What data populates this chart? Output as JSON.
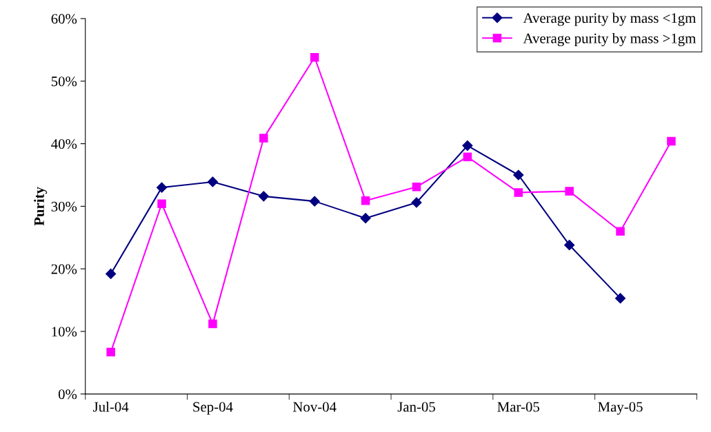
{
  "chart_data": {
    "type": "line",
    "ylabel": "Purity",
    "categories": [
      "Jul-04",
      null,
      "Sep-04",
      null,
      "Nov-04",
      null,
      "Jan-05",
      null,
      "Mar-05",
      null,
      "May-05",
      null
    ],
    "series": [
      {
        "name": "Average purity by mass <1gm",
        "color": "#000080",
        "marker": "diamond",
        "values": [
          19.2,
          33.0,
          33.9,
          31.6,
          30.8,
          28.1,
          30.6,
          39.7,
          35.0,
          23.8,
          15.3,
          null
        ]
      },
      {
        "name": "Average purity by mass >1gm",
        "color": "#ff00ff",
        "marker": "square",
        "values": [
          6.7,
          30.4,
          11.2,
          40.9,
          53.8,
          30.9,
          33.1,
          37.9,
          32.2,
          32.4,
          26.0,
          40.4
        ]
      }
    ],
    "ylim": [
      0,
      60
    ],
    "yticks": [
      {
        "value": 0,
        "label": "0%"
      },
      {
        "value": 10,
        "label": "10%"
      },
      {
        "value": 20,
        "label": "20%"
      },
      {
        "value": 30,
        "label": "30%"
      },
      {
        "value": 40,
        "label": "40%"
      },
      {
        "value": 50,
        "label": "50%"
      },
      {
        "value": 60,
        "label": "60%"
      }
    ],
    "grid": false,
    "legend": "top right"
  }
}
